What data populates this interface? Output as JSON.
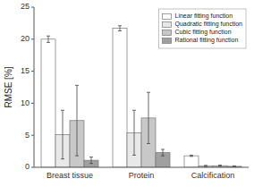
{
  "chart_data": {
    "type": "bar",
    "ylabel": "RMSE [%]",
    "categories": [
      "Breast tissue",
      "Protein",
      "Calcification"
    ],
    "series": [
      {
        "name": "Linear fitting function",
        "color": "#ffffff",
        "values": [
          20.0,
          21.7,
          1.8
        ],
        "errors": [
          0.5,
          0.4,
          0.1
        ]
      },
      {
        "name": "Quadratic fitting function",
        "color": "#e8e8e8",
        "values": [
          5.1,
          5.4,
          0.2
        ],
        "errors": [
          3.8,
          3.5,
          0.1
        ]
      },
      {
        "name": "Cubic fitting function",
        "color": "#c8c8c8",
        "values": [
          7.3,
          7.7,
          0.25
        ],
        "errors": [
          5.5,
          4.0,
          0.1
        ]
      },
      {
        "name": "Rational fitting function",
        "color": "#a0a0a0",
        "values": [
          1.1,
          2.3,
          0.15
        ],
        "errors": [
          0.5,
          0.5,
          0.08
        ]
      }
    ],
    "ylim": [
      0,
      25
    ],
    "yticks": [
      0,
      5,
      10,
      15,
      20,
      25
    ],
    "grid": false,
    "legend": "upper right"
  }
}
